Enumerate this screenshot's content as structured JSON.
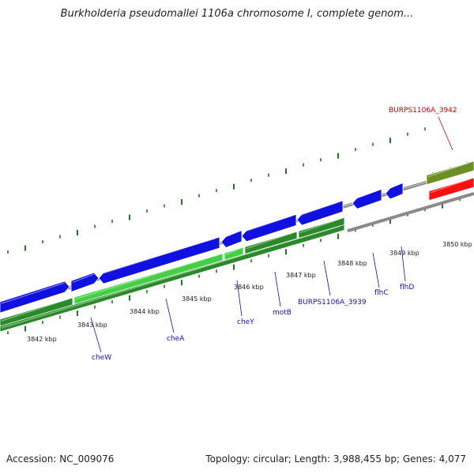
{
  "title": "Burkholderia pseudomallei 1106a chromosome I, complete genom...",
  "footer": {
    "accession": "Accession: NC_009076",
    "topology": "Topology: circular; Length: 3,988,455 bp; Genes: 4,077"
  },
  "colors": {
    "forward_gene": "#1010e0",
    "reverse_cds": "#2a8a2a",
    "reverse_cds_light": "#44d044",
    "highlight_gene": "#ff1010",
    "olive_gene": "#6b8f23",
    "backbone": "#8a8a8a",
    "tick": "#1f7a1f",
    "label_blue": "#1010c0",
    "label_red": "#cc0000"
  },
  "ticks": [
    {
      "label": "3842 kbp"
    },
    {
      "label": "3843 kbp"
    },
    {
      "label": "3844 kbp"
    },
    {
      "label": "3845 kbp"
    },
    {
      "label": "3846 kbp"
    },
    {
      "label": "3847 kbp"
    },
    {
      "label": "3848 kbp"
    },
    {
      "label": "3849 kbp"
    },
    {
      "label": "3850 kbp"
    }
  ],
  "genes": [
    {
      "name": "cheW",
      "color": "label_blue"
    },
    {
      "name": "cheA",
      "color": "label_blue"
    },
    {
      "name": "cheY",
      "color": "label_blue"
    },
    {
      "name": "motB",
      "color": "label_blue"
    },
    {
      "name": "BURPS1106A_3939",
      "color": "label_blue"
    },
    {
      "name": "flhC",
      "color": "label_blue"
    },
    {
      "name": "flhD",
      "color": "label_blue"
    },
    {
      "name": "BURPS1106A_3942",
      "color": "label_red"
    }
  ]
}
